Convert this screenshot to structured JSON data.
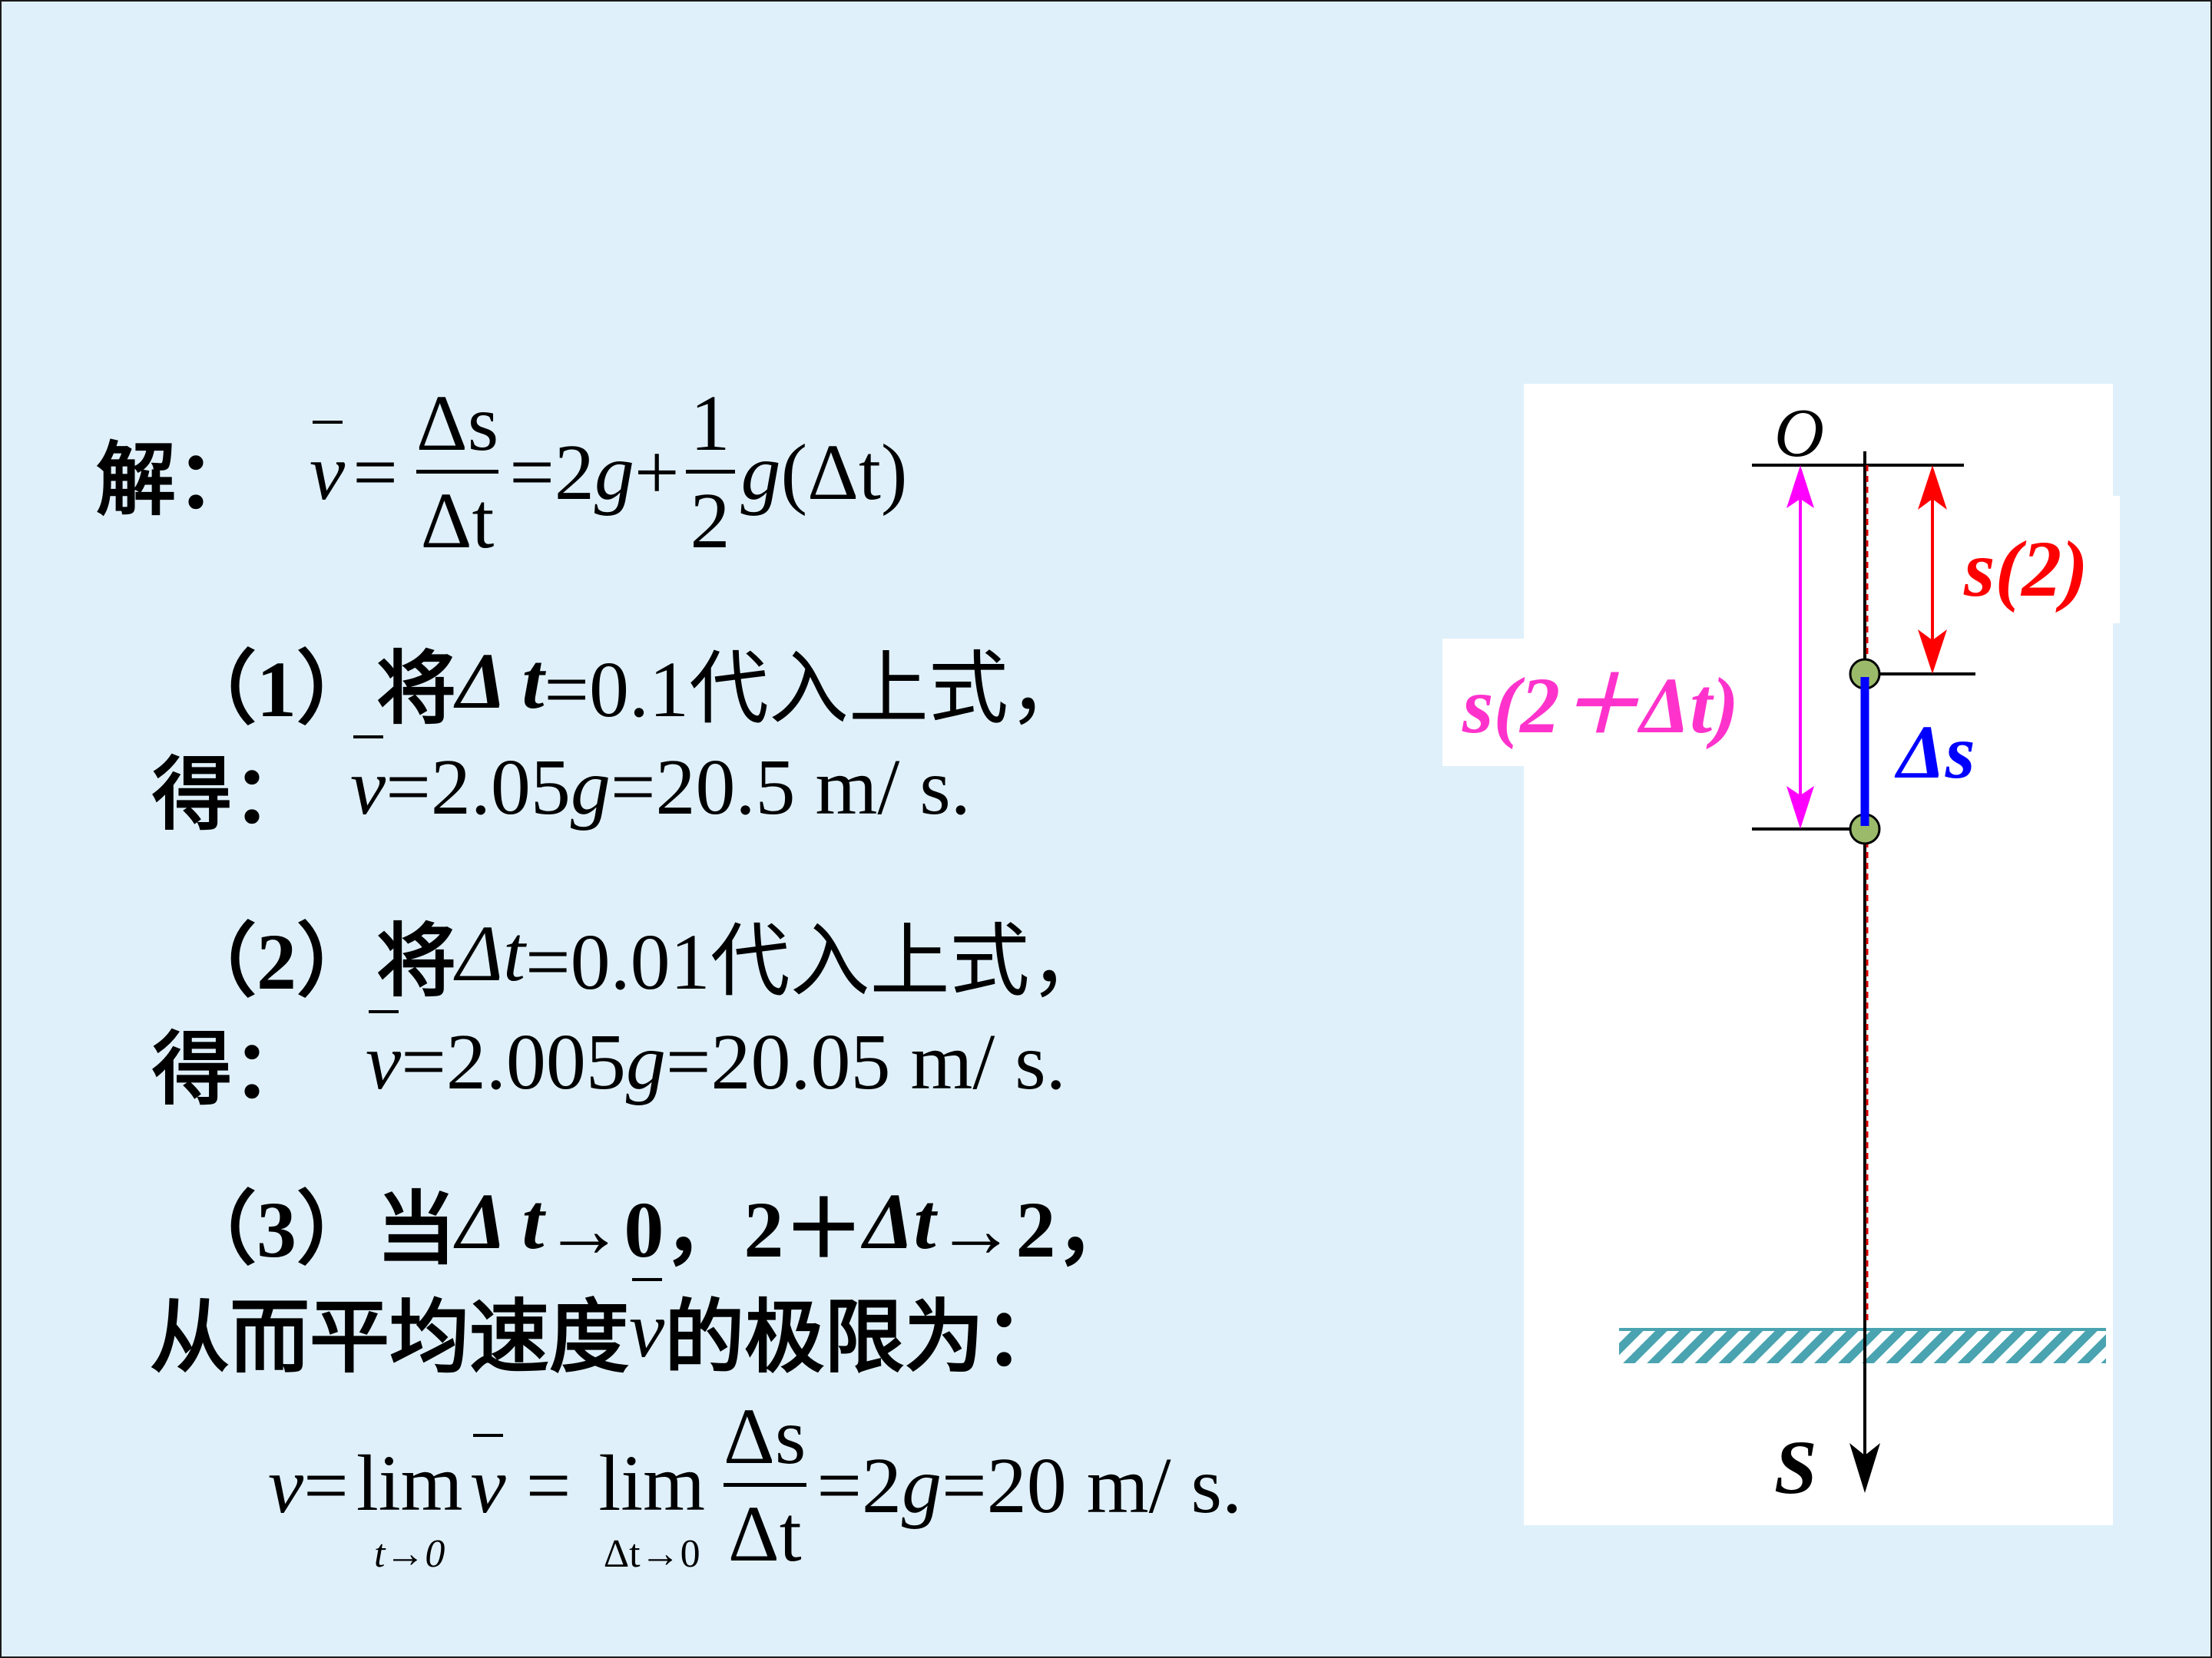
{
  "solution": {
    "label": "解：",
    "formula": {
      "v": "v",
      "eq1": "=",
      "num": "Δs",
      "den": "Δt",
      "eq2": "=2",
      "g1": "g",
      "plus": "+",
      "half_num": "1",
      "half_den": "2",
      "g2": "g",
      "tail": "(Δt)"
    }
  },
  "part1": {
    "line1": {
      "prefix": "（1）将 ",
      "delta": "Δ t",
      "rest": "=0.1代入上式，"
    },
    "line2": {
      "label": "得：",
      "v": "v",
      "eq": "=2.05",
      "g": "g",
      "rest": "=20.5 m/ s."
    }
  },
  "part2": {
    "line1": {
      "prefix": "（2）将 ",
      "delta": "Δt",
      "rest": "=0.01代入上式，"
    },
    "line2": {
      "label": "得：",
      "v": "v",
      "eq": "=2.005",
      "g": "g",
      "rest": "=20.05 m/ s."
    }
  },
  "part3": {
    "line1": {
      "prefix": "（3）当",
      "a": "Δ t",
      "b": "→0，2＋ ",
      "c": "Δt",
      "d": "→2，"
    },
    "line2": {
      "pre": "从而平均速度 ",
      "v": "v",
      "post": "的极限为："
    },
    "formula": {
      "v": "v",
      "eq1": "=",
      "lim1": "lim",
      "sub1": "t→0",
      "vbar": "v",
      "eq2": " = ",
      "lim2": "lim",
      "sub2": "Δt→0",
      "num": "Δs",
      "den": "Δt",
      "eq3": "=2",
      "g": "g",
      "rest": "=20 m/ s."
    }
  },
  "diagram": {
    "origin": "O",
    "s2": "s(2)",
    "s2dt": "s(2＋Δt)",
    "ds": "Δs",
    "axis": "S",
    "colors": {
      "s2": "#ff0000",
      "s2dt": "#ff33cc",
      "s2dt_arrow": "#ff00ff",
      "ds": "#0000ff",
      "ball": "#9bbb6a",
      "ground": "#4aa3b0"
    }
  }
}
